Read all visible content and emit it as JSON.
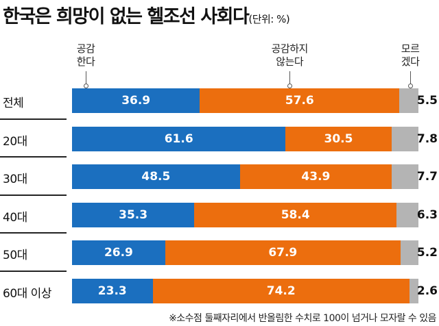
{
  "chart_data": {
    "type": "bar",
    "orientation": "horizontal",
    "stacked": true,
    "title": "한국은 희망이 없는 헬조선 사회다",
    "unit_label": "(단위: %)",
    "categories": [
      "전체",
      "20대",
      "30대",
      "40대",
      "50대",
      "60대 이상"
    ],
    "series": [
      {
        "name": "공감 한다",
        "name_lines": [
          "공감",
          "한다"
        ],
        "color": "#1b6fbf",
        "values": [
          36.9,
          61.6,
          48.5,
          35.3,
          26.9,
          23.3
        ]
      },
      {
        "name": "공감하지 않는다",
        "name_lines": [
          "공감하지",
          "않는다"
        ],
        "color": "#ec6e0e",
        "values": [
          57.6,
          30.5,
          43.9,
          58.4,
          67.9,
          74.2
        ]
      },
      {
        "name": "모르겠다",
        "name_lines": [
          "모르",
          "겠다"
        ],
        "color": "#b4b4b4",
        "values": [
          5.5,
          7.8,
          7.7,
          6.3,
          5.2,
          2.6
        ]
      }
    ],
    "xlim": [
      0,
      100
    ],
    "legend": "top",
    "note": "※소수점 둘째자리에서 반올림한 수치로 100이 넘거나 모자랄 수 있음"
  }
}
